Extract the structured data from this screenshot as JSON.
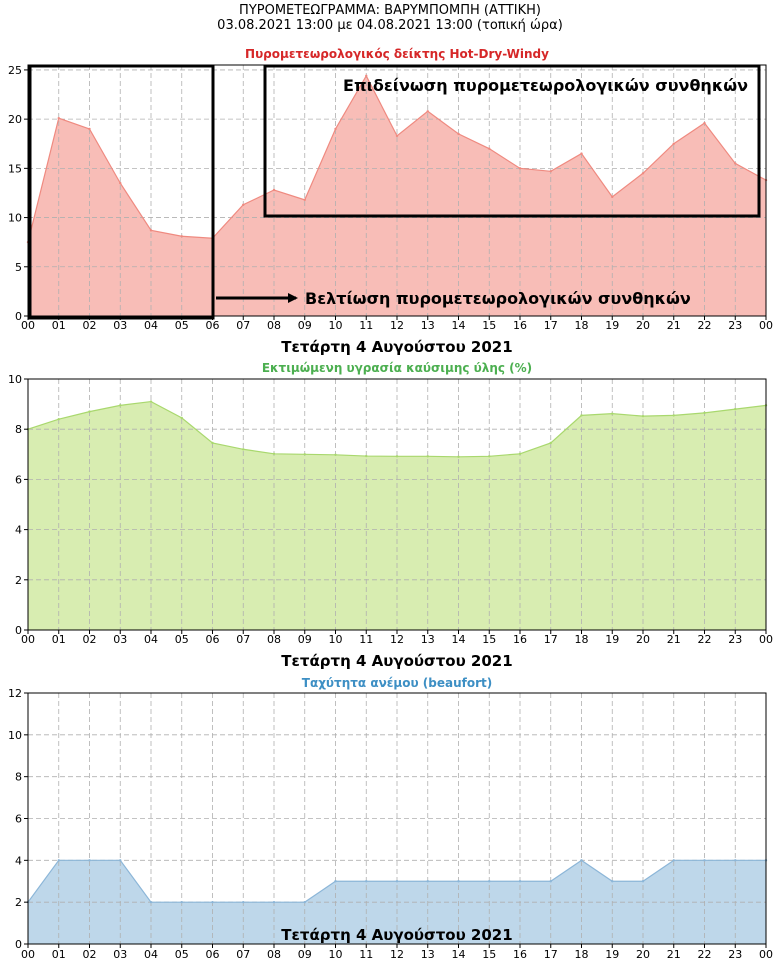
{
  "page": {
    "title_line1": "ΠΥΡΟΜΕΤΕΩΓΡΑΜΜΑ: ΒΑΡΥΜΠΟΜΠΗ (ΑΤΤΙΚΗ)",
    "title_line2": "03.08.2021 13:00 με 04.08.2021 13:00 (τοπική ώρα)"
  },
  "chart_data": [
    {
      "type": "area",
      "title": "Πυρομετεωρολογικός δείκτης Hot-Dry-Windy",
      "title_color": "#d62728",
      "fill": "#f8bdb7",
      "stroke": "#ef8a80",
      "x": [
        "00",
        "01",
        "02",
        "03",
        "04",
        "05",
        "06",
        "07",
        "08",
        "09",
        "10",
        "11",
        "12",
        "13",
        "14",
        "15",
        "16",
        "17",
        "18",
        "19",
        "20",
        "21",
        "22",
        "23",
        "00"
      ],
      "values": [
        7.5,
        20.1,
        19.0,
        13.5,
        8.7,
        8.1,
        7.9,
        11.3,
        12.8,
        11.8,
        19.0,
        24.4,
        18.3,
        20.8,
        18.5,
        17.0,
        15.0,
        14.7,
        16.5,
        12.1,
        14.5,
        17.5,
        19.6,
        15.5,
        13.8
      ],
      "ylim": [
        0,
        25.5
      ],
      "yticks": [
        0,
        5,
        10,
        15,
        20,
        25
      ],
      "xlabel": "Τετάρτη 4 Αυγούστου 2021",
      "grid": true,
      "annotations": {
        "worsening": "Επιδείνωση πυρομετεωρολογικών συνθηκών",
        "improvement": "Βελτίωση πυρομετεωρολογικών συνθηκών"
      }
    },
    {
      "type": "area",
      "title": "Εκτιμώμενη υγρασία καύσιμης ύλης (%)",
      "title_color": "#4caf50",
      "fill": "#d8edb1",
      "stroke": "#a9d86e",
      "x": [
        "00",
        "01",
        "02",
        "03",
        "04",
        "05",
        "06",
        "07",
        "08",
        "09",
        "10",
        "11",
        "12",
        "13",
        "14",
        "15",
        "16",
        "17",
        "18",
        "19",
        "20",
        "21",
        "22",
        "23",
        "00"
      ],
      "values": [
        8.0,
        8.4,
        8.7,
        8.95,
        9.1,
        8.45,
        7.45,
        7.2,
        7.02,
        7.0,
        6.98,
        6.93,
        6.92,
        6.92,
        6.9,
        6.92,
        7.02,
        7.45,
        8.55,
        8.62,
        8.52,
        8.55,
        8.65,
        8.8,
        8.95
      ],
      "ylim": [
        0,
        10
      ],
      "yticks": [
        0,
        2,
        4,
        6,
        8,
        10
      ],
      "xlabel": "Τετάρτη 4 Αυγούστου 2021",
      "grid": true
    },
    {
      "type": "area",
      "title": "Ταχύτητα ανέμου (beaufort)",
      "title_color": "#3d8fc4",
      "fill": "#bed7ea",
      "stroke": "#8cb6d8",
      "x": [
        "00",
        "01",
        "02",
        "03",
        "04",
        "05",
        "06",
        "07",
        "08",
        "09",
        "10",
        "11",
        "12",
        "13",
        "14",
        "15",
        "16",
        "17",
        "18",
        "19",
        "20",
        "21",
        "22",
        "23",
        "00"
      ],
      "values": [
        2,
        4,
        4,
        4,
        2,
        2,
        2,
        2,
        2,
        2,
        3,
        3,
        3,
        3,
        3,
        3,
        3,
        3,
        4,
        3,
        3,
        4,
        4,
        4,
        4
      ],
      "ylim": [
        0,
        12
      ],
      "yticks": [
        0,
        2,
        4,
        6,
        8,
        10,
        12
      ],
      "xlabel": "Τετάρτη 4 Αυγούστου 2021",
      "grid": true
    }
  ]
}
